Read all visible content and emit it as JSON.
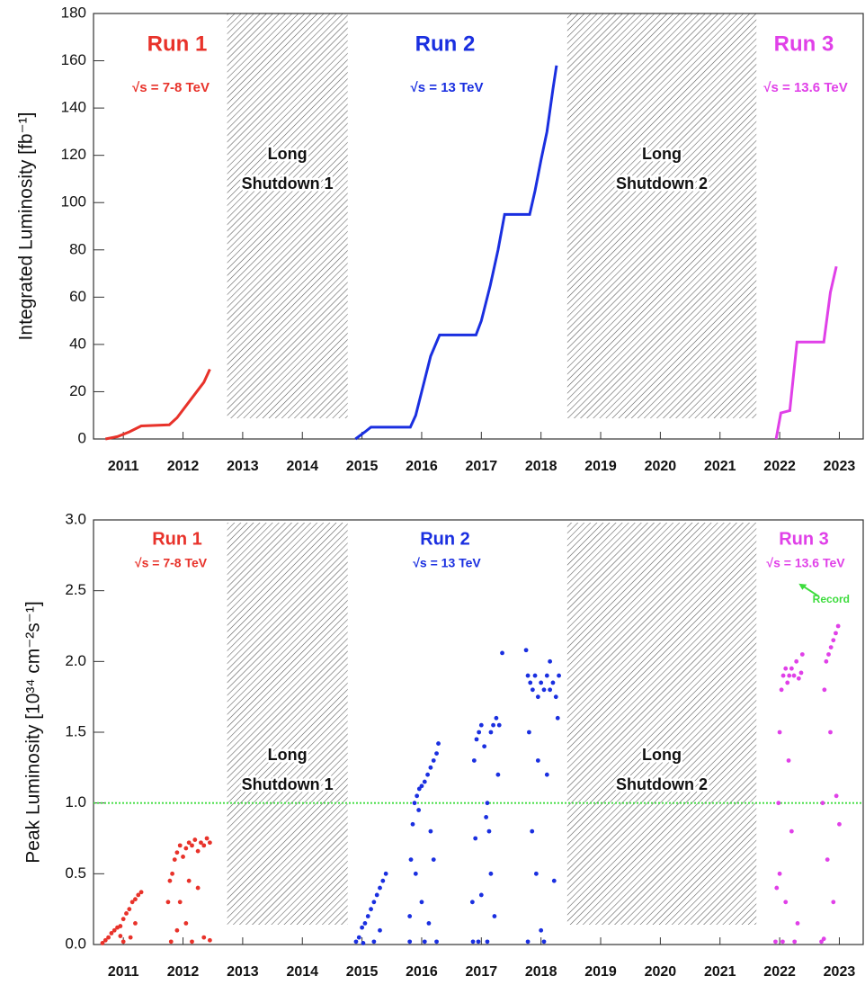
{
  "chart_data": [
    {
      "type": "line",
      "ylabel": "Integrated Luminosity [fb⁻¹]",
      "xlim": [
        2011,
        2023.9
      ],
      "ylim": [
        0,
        180
      ],
      "yticks": [
        0,
        20,
        40,
        60,
        80,
        100,
        120,
        140,
        160,
        180
      ],
      "xticks": [
        {
          "value": 2011.5,
          "label": "2011"
        },
        {
          "value": 2012.5,
          "label": "2012"
        },
        {
          "value": 2013.5,
          "label": "2013"
        },
        {
          "value": 2014.5,
          "label": "2014"
        },
        {
          "value": 2015.5,
          "label": "2015"
        },
        {
          "value": 2016.5,
          "label": "2016"
        },
        {
          "value": 2017.5,
          "label": "2017"
        },
        {
          "value": 2018.5,
          "label": "2018"
        },
        {
          "value": 2019.5,
          "label": "2019"
        },
        {
          "value": 2020.5,
          "label": "2020"
        },
        {
          "value": 2021.5,
          "label": "2021"
        },
        {
          "value": 2022.5,
          "label": "2022"
        },
        {
          "value": 2023.5,
          "label": "2023"
        }
      ],
      "shutdowns": [
        {
          "label": [
            "Long",
            "Shutdown 1"
          ],
          "span": [
            2013.24,
            2015.26
          ]
        },
        {
          "label": [
            "Long",
            "Shutdown 2"
          ],
          "span": [
            2018.94,
            2022.11
          ]
        }
      ],
      "series": [
        {
          "name": "Run 1",
          "label": "√s = 7-8 TeV",
          "color": "#e8322a",
          "x": [
            2011.2,
            2011.4,
            2011.6,
            2011.8,
            2012.27,
            2012.4,
            2012.55,
            2012.7,
            2012.85,
            2012.95
          ],
          "values": [
            0,
            1,
            3,
            5.5,
            6,
            9,
            14,
            19,
            24,
            29.5
          ]
        },
        {
          "name": "Run 2",
          "label": "√s = 13 TeV",
          "color": "#1a2fe0",
          "x": [
            2015.39,
            2015.55,
            2015.65,
            2016.31,
            2016.4,
            2016.55,
            2016.65,
            2016.8,
            2017.41,
            2017.5,
            2017.65,
            2017.78,
            2017.89,
            2018.31,
            2018.4,
            2018.5,
            2018.6,
            2018.7,
            2018.76
          ],
          "values": [
            0,
            3,
            5,
            5,
            10,
            25,
            35,
            44,
            44,
            50,
            65,
            80,
            95,
            95,
            105,
            118,
            130,
            148,
            158
          ]
        },
        {
          "name": "Run 3",
          "label": "√s = 13.6 TeV",
          "color": "#e040e8",
          "x": [
            2022.44,
            2022.52,
            2022.67,
            2022.79,
            2023.24,
            2023.35,
            2023.45
          ],
          "values": [
            0,
            11,
            12,
            41,
            41,
            62,
            73
          ]
        }
      ]
    },
    {
      "type": "scatter",
      "ylabel": "Peak Luminosity [10³⁴ cm⁻²s⁻¹]",
      "xlim": [
        2011,
        2023.9
      ],
      "ylim": [
        0,
        3
      ],
      "yticks": [
        {
          "value": 0,
          "label": "0.0"
        },
        {
          "value": 0.5,
          "label": "0.5"
        },
        {
          "value": 1,
          "label": "1.0"
        },
        {
          "value": 1.5,
          "label": "1.5"
        },
        {
          "value": 2,
          "label": "2.0"
        },
        {
          "value": 2.5,
          "label": "2.5"
        },
        {
          "value": 3,
          "label": "3.0"
        }
      ],
      "xticks": [
        {
          "value": 2011.5,
          "label": "2011"
        },
        {
          "value": 2012.5,
          "label": "2012"
        },
        {
          "value": 2013.5,
          "label": "2013"
        },
        {
          "value": 2014.5,
          "label": "2014"
        },
        {
          "value": 2015.5,
          "label": "2015"
        },
        {
          "value": 2016.5,
          "label": "2016"
        },
        {
          "value": 2017.5,
          "label": "2017"
        },
        {
          "value": 2018.5,
          "label": "2018"
        },
        {
          "value": 2019.5,
          "label": "2019"
        },
        {
          "value": 2020.5,
          "label": "2020"
        },
        {
          "value": 2021.5,
          "label": "2021"
        },
        {
          "value": 2022.5,
          "label": "2022"
        },
        {
          "value": 2023.5,
          "label": "2023"
        }
      ],
      "shutdowns": [
        {
          "label": [
            "Long",
            "Shutdown 1"
          ],
          "span": [
            2013.24,
            2015.26
          ]
        },
        {
          "label": [
            "Long",
            "Shutdown 2"
          ],
          "span": [
            2018.94,
            2022.11
          ]
        }
      ],
      "hline": {
        "value": 1,
        "color": "#3ddc3d"
      },
      "annotation": {
        "text": "Record",
        "x": 2022.82,
        "y": 2.55,
        "color": "#3ddc3d"
      },
      "series": [
        {
          "name": "Run 1",
          "label": "√s = 7-8 TeV",
          "color": "#e8322a",
          "x": [
            2011.15,
            2011.2,
            2011.25,
            2011.3,
            2011.35,
            2011.4,
            2011.45,
            2011.5,
            2011.55,
            2011.6,
            2011.65,
            2011.7,
            2011.75,
            2011.8,
            2011.5,
            2011.62,
            2011.7,
            2011.45,
            2012.25,
            2012.28,
            2012.32,
            2012.36,
            2012.4,
            2012.45,
            2012.5,
            2012.55,
            2012.6,
            2012.65,
            2012.7,
            2012.75,
            2012.8,
            2012.85,
            2012.9,
            2012.95,
            2012.3,
            2012.45,
            2012.55,
            2012.65,
            2012.75,
            2012.85,
            2012.95,
            2012.4,
            2012.6
          ],
          "values": [
            0.01,
            0.03,
            0.05,
            0.08,
            0.1,
            0.12,
            0.13,
            0.18,
            0.22,
            0.25,
            0.3,
            0.32,
            0.35,
            0.37,
            0.02,
            0.05,
            0.15,
            0.06,
            0.3,
            0.45,
            0.5,
            0.6,
            0.65,
            0.7,
            0.62,
            0.68,
            0.72,
            0.7,
            0.74,
            0.66,
            0.72,
            0.7,
            0.75,
            0.72,
            0.02,
            0.3,
            0.15,
            0.02,
            0.4,
            0.05,
            0.03,
            0.1,
            0.45
          ]
        },
        {
          "name": "Run 2",
          "label": "√s = 13 TeV",
          "color": "#1a2fe0",
          "x": [
            2015.4,
            2015.45,
            2015.5,
            2015.55,
            2015.6,
            2015.65,
            2015.7,
            2015.75,
            2015.8,
            2015.85,
            2015.9,
            2015.52,
            2015.7,
            2015.8,
            2016.3,
            2016.32,
            2016.35,
            2016.38,
            2016.42,
            2016.46,
            2016.5,
            2016.55,
            2016.6,
            2016.65,
            2016.7,
            2016.75,
            2016.78,
            2016.4,
            2016.5,
            2016.55,
            2016.65,
            2016.7,
            2016.75,
            2016.62,
            2016.3,
            2016.45,
            2017.35,
            2017.38,
            2017.42,
            2017.46,
            2017.5,
            2017.55,
            2017.58,
            2017.6,
            2017.63,
            2017.66,
            2017.7,
            2017.75,
            2017.8,
            2017.85,
            2017.4,
            2017.45,
            2017.5,
            2017.6,
            2017.66,
            2017.72,
            2017.78,
            2017.36,
            2018.25,
            2018.28,
            2018.32,
            2018.36,
            2018.4,
            2018.45,
            2018.5,
            2018.55,
            2018.6,
            2018.65,
            2018.7,
            2018.75,
            2018.78,
            2018.8,
            2018.3,
            2018.35,
            2018.42,
            2018.5,
            2018.55,
            2018.6,
            2018.72,
            2018.28,
            2018.65,
            2018.45
          ],
          "values": [
            0.02,
            0.05,
            0.12,
            0.15,
            0.2,
            0.25,
            0.3,
            0.35,
            0.4,
            0.45,
            0.5,
            0.01,
            0.02,
            0.1,
            0.2,
            0.6,
            0.85,
            1.0,
            1.05,
            1.1,
            1.12,
            1.15,
            1.2,
            1.25,
            1.3,
            1.35,
            1.42,
            0.5,
            0.3,
            0.02,
            0.8,
            0.6,
            0.02,
            0.15,
            0.02,
            0.95,
            0.3,
            1.3,
            1.45,
            1.5,
            1.55,
            1.4,
            0.9,
            1.0,
            0.8,
            1.5,
            1.55,
            1.6,
            1.55,
            2.06,
            0.75,
            0.02,
            0.35,
            0.02,
            0.5,
            0.2,
            1.2,
            0.02,
            2.08,
            1.9,
            1.85,
            1.8,
            1.9,
            1.75,
            1.85,
            1.8,
            1.9,
            1.8,
            1.85,
            1.75,
            1.6,
            1.9,
            1.5,
            0.8,
            0.5,
            0.1,
            0.02,
            1.2,
            0.45,
            0.02,
            2.0,
            1.3
          ]
        },
        {
          "name": "Run 3",
          "label": "√s = 13.6 TeV",
          "color": "#e040e8",
          "x": [
            2022.43,
            2022.45,
            2022.48,
            2022.5,
            2022.53,
            2022.56,
            2022.6,
            2022.63,
            2022.66,
            2022.7,
            2022.74,
            2022.78,
            2022.82,
            2022.86,
            2022.88,
            2022.5,
            2022.55,
            2022.6,
            2022.65,
            2022.7,
            2022.75,
            2022.8,
            2023.2,
            2023.22,
            2023.25,
            2023.28,
            2023.32,
            2023.36,
            2023.4,
            2023.44,
            2023.48,
            2023.3,
            2023.35,
            2023.4,
            2023.45,
            2023.5,
            2023.24
          ],
          "values": [
            0.02,
            0.4,
            1.0,
            1.5,
            1.8,
            1.9,
            1.95,
            1.85,
            1.9,
            1.95,
            1.9,
            2.0,
            1.88,
            1.92,
            2.05,
            0.5,
            0.02,
            0.3,
            1.3,
            0.8,
            0.02,
            0.15,
            0.02,
            1.0,
            1.8,
            2.0,
            2.05,
            2.1,
            2.15,
            2.2,
            2.25,
            0.6,
            1.5,
            0.3,
            1.05,
            0.85,
            0.04
          ]
        }
      ]
    }
  ]
}
